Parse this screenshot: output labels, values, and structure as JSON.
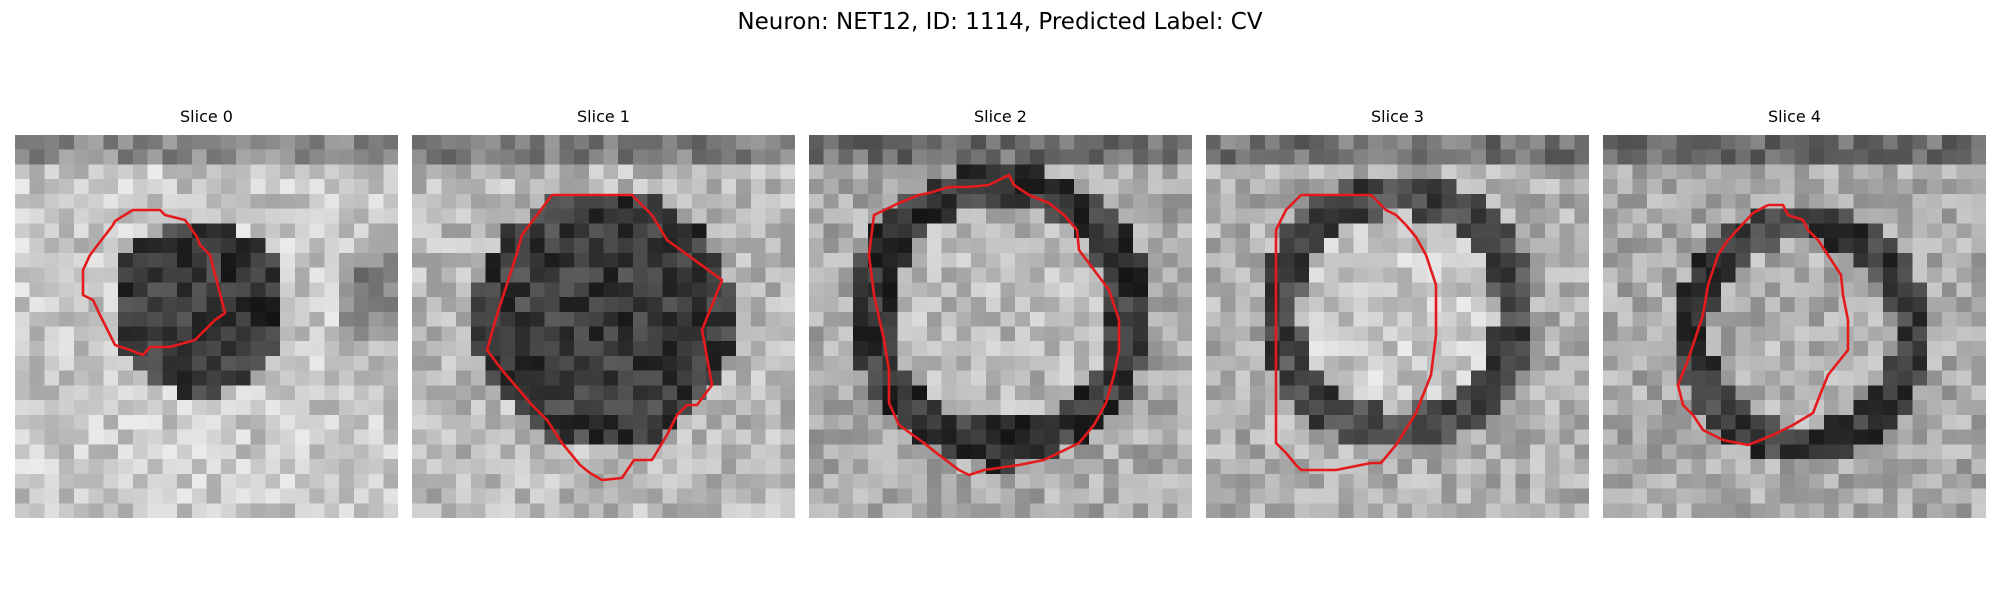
{
  "figure": {
    "title": "Neuron: NET12, ID: 1114, Predicted Label: CV"
  },
  "contour_color": "#e41a1c",
  "slices": [
    {
      "label": "Slice 0"
    },
    {
      "label": "Slice 1"
    },
    {
      "label": "Slice 2"
    },
    {
      "label": "Slice 3"
    },
    {
      "label": "Slice 4"
    }
  ]
}
